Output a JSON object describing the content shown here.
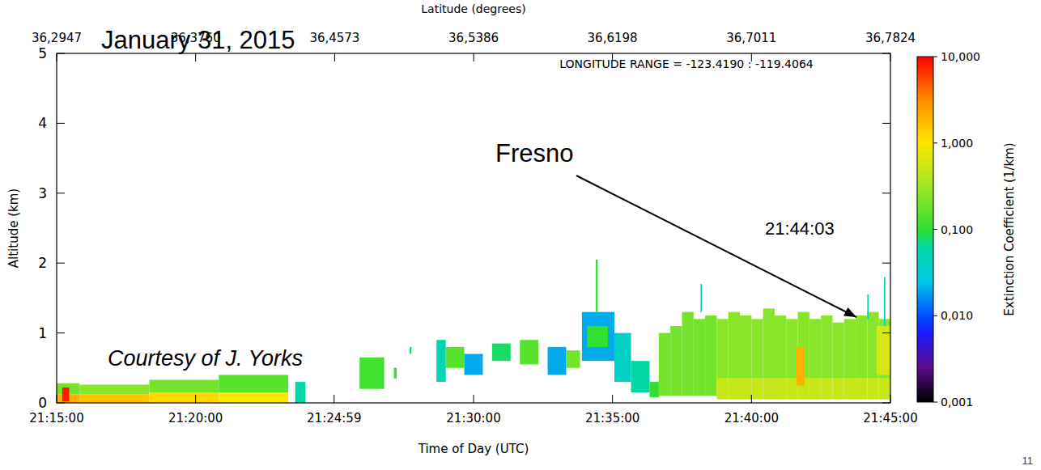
{
  "chart_data": {
    "type": "curtain",
    "x_label": "Time of Day (UTC)",
    "y_label": "Altitude (km)",
    "x2_label": "Latitude (degrees)",
    "xlim": [
      76500,
      78300
    ],
    "xticks": [
      {
        "value": 76500,
        "label": "21:15:00"
      },
      {
        "value": 76800,
        "label": "21:20:00"
      },
      {
        "value": 77099,
        "label": "21:24:59"
      },
      {
        "value": 77400,
        "label": "21:30:00"
      },
      {
        "value": 77700,
        "label": "21:35:00"
      },
      {
        "value": 78000,
        "label": "21:40:00"
      },
      {
        "value": 78300,
        "label": "21:45:00"
      }
    ],
    "x2lim": [
      36.2947,
      36.7824
    ],
    "x2ticks": [
      {
        "value": 36.2947,
        "label": "36,2947"
      },
      {
        "value": 36.376,
        "label": "36,3760"
      },
      {
        "value": 36.4573,
        "label": "36,4573"
      },
      {
        "value": 36.5386,
        "label": "36,5386"
      },
      {
        "value": 36.6198,
        "label": "36,6198"
      },
      {
        "value": 36.7011,
        "label": "36,7011"
      },
      {
        "value": 36.7824,
        "label": "36,7824"
      }
    ],
    "ylim": [
      0,
      5
    ],
    "yticks": [
      0,
      1,
      2,
      3,
      4,
      5
    ],
    "colorbar": {
      "label": "Extinction Coefficient (1/km)",
      "lim": [
        0.001,
        10
      ],
      "ticks": [
        {
          "value": 0.001,
          "label": "0,001"
        },
        {
          "value": 0.01,
          "label": "0,010"
        },
        {
          "value": 0.1,
          "label": "0,100"
        },
        {
          "value": 1,
          "label": "1,000"
        },
        {
          "value": 10,
          "label": "10,000"
        }
      ]
    },
    "annotations": [
      "January 31, 2015",
      "LONGITUDE RANGE =  -123.4190 : -119.4064",
      "Fresno",
      "21:44:03",
      "Courtesy of J. Yorks"
    ],
    "page_number": "11",
    "cells": [
      {
        "x0": 76500,
        "x1": 76550,
        "bottom": 0,
        "top": 0.12,
        "value": 2.0
      },
      {
        "x0": 76500,
        "x1": 76550,
        "bottom": 0.12,
        "top": 0.28,
        "value": 0.2
      },
      {
        "x0": 76550,
        "x1": 76700,
        "bottom": 0,
        "top": 0.12,
        "value": 1.5
      },
      {
        "x0": 76550,
        "x1": 76700,
        "bottom": 0.12,
        "top": 0.26,
        "value": 0.25
      },
      {
        "x0": 76700,
        "x1": 76850,
        "bottom": 0,
        "top": 0.15,
        "value": 1.2
      },
      {
        "x0": 76700,
        "x1": 76850,
        "bottom": 0.15,
        "top": 0.33,
        "value": 0.2
      },
      {
        "x0": 76850,
        "x1": 77000,
        "bottom": 0,
        "top": 0.15,
        "value": 1.0
      },
      {
        "x0": 76850,
        "x1": 77000,
        "bottom": 0.15,
        "top": 0.4,
        "value": 0.15
      },
      {
        "x0": 76512,
        "x1": 76527,
        "bottom": 0.02,
        "top": 0.22,
        "value": 8
      },
      {
        "x0": 77015,
        "x1": 77037,
        "bottom": 0,
        "top": 0.3,
        "value": 0.06
      },
      {
        "x0": 77154,
        "x1": 77207,
        "bottom": 0.2,
        "top": 0.65,
        "value": 0.12
      },
      {
        "x0": 77228,
        "x1": 77234,
        "bottom": 0.35,
        "top": 0.5,
        "value": 0.1
      },
      {
        "x0": 77262,
        "x1": 77266,
        "bottom": 0.7,
        "top": 0.8,
        "value": 0.08
      },
      {
        "x0": 77320,
        "x1": 77340,
        "bottom": 0.3,
        "top": 0.9,
        "value": 0.05
      },
      {
        "x0": 77340,
        "x1": 77380,
        "bottom": 0.5,
        "top": 0.8,
        "value": 0.15
      },
      {
        "x0": 77380,
        "x1": 77420,
        "bottom": 0.4,
        "top": 0.7,
        "value": 0.02
      },
      {
        "x0": 77440,
        "x1": 77480,
        "bottom": 0.6,
        "top": 0.85,
        "value": 0.08
      },
      {
        "x0": 77500,
        "x1": 77540,
        "bottom": 0.55,
        "top": 0.9,
        "value": 0.15
      },
      {
        "x0": 77560,
        "x1": 77600,
        "bottom": 0.4,
        "top": 0.8,
        "value": 0.02
      },
      {
        "x0": 77600,
        "x1": 77630,
        "bottom": 0.5,
        "top": 0.75,
        "value": 0.2
      },
      {
        "x0": 77634,
        "x1": 77704,
        "bottom": 0.6,
        "top": 1.3,
        "value": 0.02
      },
      {
        "x0": 77645,
        "x1": 77690,
        "bottom": 0.8,
        "top": 1.1,
        "value": 0.1
      },
      {
        "x0": 77664,
        "x1": 77668,
        "bottom": 1.3,
        "top": 2.05,
        "value": 0.1
      },
      {
        "x0": 77704,
        "x1": 77740,
        "bottom": 0.3,
        "top": 1.0,
        "value": 0.04
      },
      {
        "x0": 77740,
        "x1": 77780,
        "bottom": 0.15,
        "top": 0.6,
        "value": 0.06
      },
      {
        "x0": 77780,
        "x1": 77800,
        "bottom": 0.08,
        "top": 0.3,
        "value": 0.1
      },
      {
        "x0": 77800,
        "x1": 77825,
        "bottom": 0.1,
        "top": 1.0,
        "value": 0.2
      },
      {
        "x0": 77825,
        "x1": 77850,
        "bottom": 0.1,
        "top": 1.1,
        "value": 0.2
      },
      {
        "x0": 77850,
        "x1": 77875,
        "bottom": 0.1,
        "top": 1.3,
        "value": 0.2
      },
      {
        "x0": 77875,
        "x1": 77900,
        "bottom": 0.1,
        "top": 1.2,
        "value": 0.2
      },
      {
        "x0": 77900,
        "x1": 77925,
        "bottom": 0.1,
        "top": 1.25,
        "value": 0.2
      },
      {
        "x0": 77925,
        "x1": 77950,
        "bottom": 0.05,
        "top": 0.35,
        "value": 0.5
      },
      {
        "x0": 77925,
        "x1": 77950,
        "bottom": 0.35,
        "top": 1.2,
        "value": 0.25
      },
      {
        "x0": 77950,
        "x1": 77975,
        "bottom": 0.05,
        "top": 0.35,
        "value": 0.5
      },
      {
        "x0": 77950,
        "x1": 77975,
        "bottom": 0.35,
        "top": 1.3,
        "value": 0.25
      },
      {
        "x0": 77975,
        "x1": 78000,
        "bottom": 0.05,
        "top": 0.35,
        "value": 0.5
      },
      {
        "x0": 77975,
        "x1": 78000,
        "bottom": 0.35,
        "top": 1.25,
        "value": 0.25
      },
      {
        "x0": 78000,
        "x1": 78025,
        "bottom": 0.05,
        "top": 0.35,
        "value": 0.5
      },
      {
        "x0": 78000,
        "x1": 78025,
        "bottom": 0.35,
        "top": 1.2,
        "value": 0.25
      },
      {
        "x0": 78025,
        "x1": 78050,
        "bottom": 0.05,
        "top": 0.35,
        "value": 0.5
      },
      {
        "x0": 78025,
        "x1": 78050,
        "bottom": 0.35,
        "top": 1.35,
        "value": 0.25
      },
      {
        "x0": 78050,
        "x1": 78075,
        "bottom": 0.05,
        "top": 0.35,
        "value": 0.5
      },
      {
        "x0": 78050,
        "x1": 78075,
        "bottom": 0.35,
        "top": 1.25,
        "value": 0.25
      },
      {
        "x0": 78075,
        "x1": 78100,
        "bottom": 0.05,
        "top": 0.35,
        "value": 0.5
      },
      {
        "x0": 78075,
        "x1": 78100,
        "bottom": 0.35,
        "top": 1.2,
        "value": 0.25
      },
      {
        "x0": 78100,
        "x1": 78125,
        "bottom": 0.05,
        "top": 0.35,
        "value": 0.5
      },
      {
        "x0": 78100,
        "x1": 78125,
        "bottom": 0.35,
        "top": 1.3,
        "value": 0.25
      },
      {
        "x0": 78125,
        "x1": 78150,
        "bottom": 0.05,
        "top": 0.35,
        "value": 0.5
      },
      {
        "x0": 78125,
        "x1": 78150,
        "bottom": 0.35,
        "top": 1.2,
        "value": 0.25
      },
      {
        "x0": 78150,
        "x1": 78175,
        "bottom": 0.05,
        "top": 0.35,
        "value": 0.5
      },
      {
        "x0": 78150,
        "x1": 78175,
        "bottom": 0.35,
        "top": 1.25,
        "value": 0.25
      },
      {
        "x0": 78175,
        "x1": 78200,
        "bottom": 0.05,
        "top": 0.35,
        "value": 0.5
      },
      {
        "x0": 78175,
        "x1": 78200,
        "bottom": 0.35,
        "top": 1.15,
        "value": 0.25
      },
      {
        "x0": 78200,
        "x1": 78225,
        "bottom": 0.05,
        "top": 0.35,
        "value": 0.5
      },
      {
        "x0": 78200,
        "x1": 78225,
        "bottom": 0.35,
        "top": 1.2,
        "value": 0.25
      },
      {
        "x0": 78225,
        "x1": 78250,
        "bottom": 0.05,
        "top": 0.35,
        "value": 0.5
      },
      {
        "x0": 78225,
        "x1": 78250,
        "bottom": 0.35,
        "top": 1.25,
        "value": 0.25
      },
      {
        "x0": 78250,
        "x1": 78275,
        "bottom": 0.05,
        "top": 0.35,
        "value": 0.5
      },
      {
        "x0": 78250,
        "x1": 78275,
        "bottom": 0.35,
        "top": 1.3,
        "value": 0.25
      },
      {
        "x0": 78275,
        "x1": 78300,
        "bottom": 0.05,
        "top": 0.35,
        "value": 0.5
      },
      {
        "x0": 78275,
        "x1": 78300,
        "bottom": 0.35,
        "top": 1.2,
        "value": 0.25
      },
      {
        "x0": 78097,
        "x1": 78115,
        "bottom": 0.25,
        "top": 0.8,
        "value": 2
      },
      {
        "x0": 78270,
        "x1": 78300,
        "bottom": 0.4,
        "top": 1.1,
        "value": 0.6
      },
      {
        "x0": 77890,
        "x1": 77893,
        "bottom": 1.3,
        "top": 1.7,
        "value": 0.05
      },
      {
        "x0": 78250,
        "x1": 78253,
        "bottom": 1.2,
        "top": 1.55,
        "value": 0.05
      },
      {
        "x0": 78286,
        "x1": 78289,
        "bottom": 1.1,
        "top": 1.8,
        "value": 0.05
      }
    ]
  }
}
